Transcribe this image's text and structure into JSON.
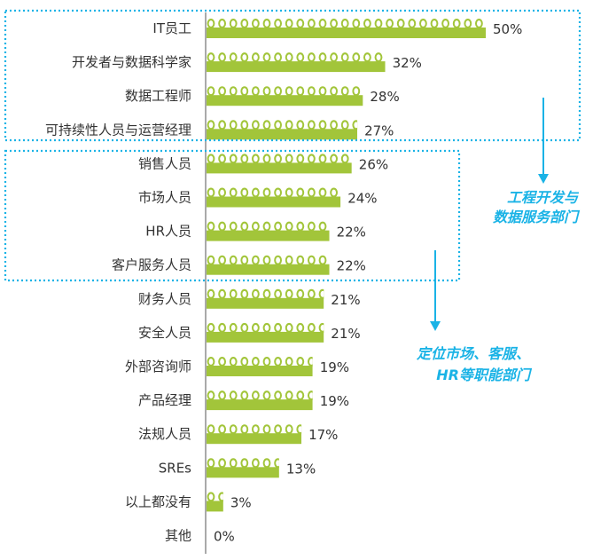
{
  "chart_data": {
    "type": "bar",
    "orientation": "horizontal",
    "categories": [
      "IT员工",
      "开发者与数据科学家",
      "数据工程师",
      "可持续性人员与运营经理",
      "销售人员",
      "市场人员",
      "HR人员",
      "客户服务人员",
      "财务人员",
      "安全人员",
      "外部咨询师",
      "产品经理",
      "法规人员",
      "SREs",
      "以上都没有",
      "其他"
    ],
    "values": [
      50,
      32,
      28,
      27,
      26,
      24,
      22,
      22,
      21,
      21,
      19,
      19,
      17,
      13,
      3,
      0
    ],
    "value_labels": [
      "50%",
      "32%",
      "28%",
      "27%",
      "26%",
      "24%",
      "22%",
      "22%",
      "21%",
      "21%",
      "19%",
      "19%",
      "17%",
      "13%",
      "3%",
      "0%"
    ],
    "unit": "%",
    "xlim": [
      0,
      50
    ],
    "grid": false,
    "legend": "none",
    "bar_style": "pictogram-people",
    "groups": [
      {
        "label_lines": [
          "工程开发与",
          "数据服务部门"
        ],
        "categories": [
          "IT员工",
          "开发者与数据科学家",
          "数据工程师",
          "可持续性人员与运营经理"
        ]
      },
      {
        "label_lines": [
          "定位市场、客服、",
          "HR等职能部门"
        ],
        "categories": [
          "销售人员",
          "市场人员",
          "HR人员",
          "客户服务人员"
        ]
      }
    ]
  },
  "colors": {
    "bar": "#a2c53a",
    "head": "#ffffff",
    "highlight": "#1ab3e6",
    "text": "#333333",
    "axis": "#555555"
  }
}
